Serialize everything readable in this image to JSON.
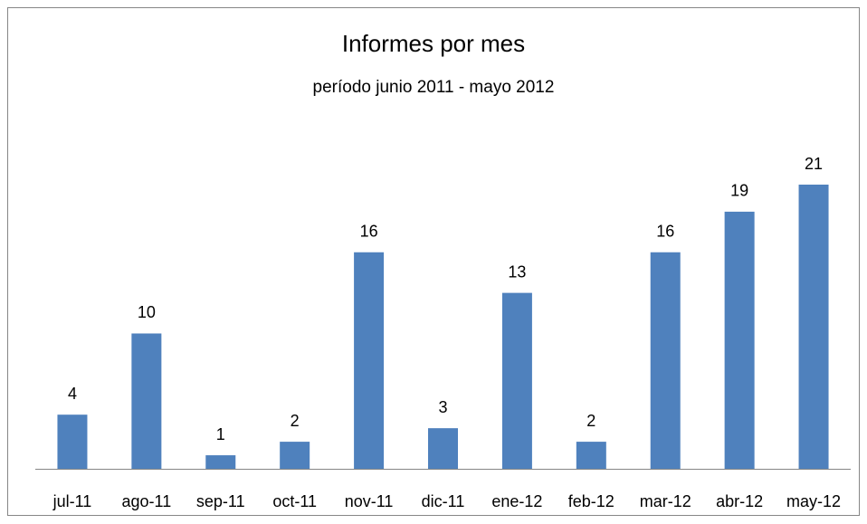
{
  "chart_data": {
    "type": "bar",
    "title": "Informes por mes",
    "subtitle": "período junio 2011 - mayo 2012",
    "categories": [
      "jul-11",
      "ago-11",
      "sep-11",
      "oct-11",
      "nov-11",
      "dic-11",
      "ene-12",
      "feb-12",
      "mar-12",
      "abr-12",
      "may-12"
    ],
    "values": [
      4,
      10,
      1,
      2,
      16,
      3,
      13,
      2,
      16,
      19,
      21
    ],
    "color": "#4f81bd"
  }
}
